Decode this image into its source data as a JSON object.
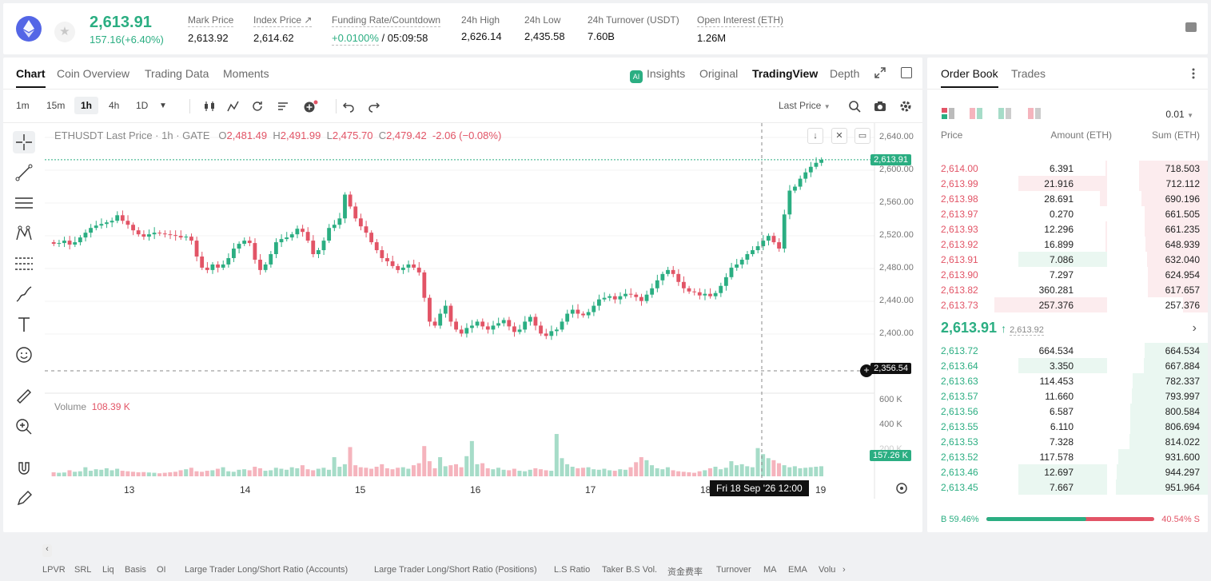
{
  "header": {
    "symbol_icon": "ethereum-icon",
    "last_price": "2,613.91",
    "change": "157.16(+6.40%)",
    "stats": [
      {
        "label": "Mark Price",
        "value": "2,613.92"
      },
      {
        "label": "Index Price ↗",
        "value": "2,614.62"
      },
      {
        "label": "Funding Rate/Countdown",
        "value_rate": "+0.0100%",
        "value_countdown": "/ 05:09:58"
      },
      {
        "label": "24h High",
        "value": "2,626.14"
      },
      {
        "label": "24h Low",
        "value": "2,435.58"
      },
      {
        "label": "24h Turnover (USDT)",
        "value": "7.60B"
      },
      {
        "label": "Open Interest (ETH)",
        "value": "1.26M"
      }
    ]
  },
  "chart_tabs": [
    "Chart",
    "Coin Overview",
    "Trading Data",
    "Moments"
  ],
  "view_tabs": {
    "insights": "Insights",
    "original": "Original",
    "tradingview": "TradingView",
    "depth": "Depth"
  },
  "timeframes": [
    "1m",
    "15m",
    "1h",
    "4h",
    "1D"
  ],
  "toolbar": {
    "price_type": "Last Price"
  },
  "chart": {
    "legend_symbol": "ETHUSDT Last Price · 1h · GATE",
    "o_label": "O",
    "o": "2,481.49",
    "h_label": "H",
    "h": "2,491.99",
    "l_label": "L",
    "l": "2,475.70",
    "c_label": "C",
    "c": "2,479.42",
    "change": "-2.06 (−0.08%)",
    "volume_label": "Volume",
    "volume_value": "108.39 K",
    "current_price_label": "2,613.91",
    "crosshair_price_label": "2,356.54",
    "volume_current_label": "157.26 K",
    "time_badge": "Fri 18 Sep '26   12:00",
    "y_ticks": [
      "2,640.00",
      "2,600.00",
      "2,560.00",
      "2,520.00",
      "2,480.00",
      "2,440.00",
      "2,400.00"
    ],
    "vol_ticks": [
      "600 K",
      "400 K",
      "200 K"
    ],
    "x_ticks": [
      "13",
      "14",
      "15",
      "16",
      "17",
      "18",
      "19"
    ],
    "bottom_indicators": [
      "LPVR",
      "SRL",
      "Liq",
      "Basis",
      "OI",
      "Large Trader Long/Short Ratio (Accounts)",
      "Large Trader Long/Short Ratio (Positions)",
      "L.S Ratio",
      "Taker B.S Vol.",
      "资金费率",
      "Turnover",
      "MA",
      "EMA",
      "Volu"
    ]
  },
  "chart_data": {
    "type": "candlestick",
    "ylim": [
      2340,
      2650
    ],
    "vol_ylim": [
      0,
      600000
    ],
    "x_ticks": [
      "13",
      "14",
      "15",
      "16",
      "17",
      "18",
      "19"
    ],
    "series": [
      {
        "name": "Price",
        "points": [
          [
            2510,
            2508
          ],
          [
            2508,
            2509
          ],
          [
            2509,
            2512
          ],
          [
            2512,
            2507
          ],
          [
            2507,
            2510
          ],
          [
            2510,
            2516
          ],
          [
            2516,
            2522
          ],
          [
            2522,
            2528
          ],
          [
            2528,
            2531
          ],
          [
            2531,
            2533
          ],
          [
            2533,
            2535
          ],
          [
            2535,
            2537
          ],
          [
            2537,
            2544
          ],
          [
            2544,
            2537
          ],
          [
            2537,
            2532
          ],
          [
            2532,
            2525
          ],
          [
            2525,
            2520
          ],
          [
            2520,
            2517
          ],
          [
            2517,
            2520
          ],
          [
            2520,
            2522
          ],
          [
            2522,
            2521
          ],
          [
            2521,
            2520
          ],
          [
            2520,
            2519
          ],
          [
            2519,
            2518
          ],
          [
            2518,
            2516
          ],
          [
            2516,
            2517
          ],
          [
            2517,
            2512
          ],
          [
            2512,
            2492
          ],
          [
            2492,
            2478
          ],
          [
            2478,
            2475
          ],
          [
            2475,
            2482
          ],
          [
            2482,
            2478
          ],
          [
            2478,
            2482
          ],
          [
            2482,
            2490
          ],
          [
            2490,
            2502
          ],
          [
            2502,
            2508
          ],
          [
            2508,
            2512
          ],
          [
            2512,
            2509
          ],
          [
            2509,
            2488
          ],
          [
            2488,
            2475
          ],
          [
            2475,
            2482
          ],
          [
            2482,
            2495
          ],
          [
            2495,
            2510
          ],
          [
            2510,
            2514
          ],
          [
            2514,
            2516
          ],
          [
            2516,
            2520
          ],
          [
            2520,
            2527
          ],
          [
            2527,
            2523
          ],
          [
            2523,
            2512
          ],
          [
            2512,
            2495
          ],
          [
            2495,
            2500
          ],
          [
            2500,
            2512
          ],
          [
            2512,
            2528
          ],
          [
            2528,
            2532
          ],
          [
            2532,
            2540
          ],
          [
            2540,
            2570
          ],
          [
            2570,
            2555
          ],
          [
            2555,
            2540
          ],
          [
            2540,
            2530
          ],
          [
            2530,
            2522
          ],
          [
            2522,
            2510
          ],
          [
            2510,
            2500
          ],
          [
            2500,
            2490
          ],
          [
            2490,
            2486
          ],
          [
            2486,
            2480
          ],
          [
            2480,
            2475
          ],
          [
            2475,
            2478
          ],
          [
            2478,
            2482
          ],
          [
            2482,
            2478
          ],
          [
            2478,
            2472
          ],
          [
            2472,
            2440
          ],
          [
            2440,
            2410
          ],
          [
            2410,
            2405
          ],
          [
            2405,
            2420
          ],
          [
            2420,
            2430
          ],
          [
            2430,
            2410
          ],
          [
            2410,
            2400
          ],
          [
            2400,
            2395
          ],
          [
            2395,
            2402
          ],
          [
            2402,
            2405
          ],
          [
            2405,
            2410
          ],
          [
            2410,
            2404
          ],
          [
            2404,
            2400
          ],
          [
            2400,
            2405
          ],
          [
            2405,
            2408
          ],
          [
            2408,
            2412
          ],
          [
            2412,
            2404
          ],
          [
            2404,
            2397
          ],
          [
            2397,
            2400
          ],
          [
            2400,
            2410
          ],
          [
            2410,
            2416
          ],
          [
            2416,
            2405
          ],
          [
            2405,
            2395
          ],
          [
            2395,
            2392
          ],
          [
            2392,
            2398
          ],
          [
            2398,
            2400
          ],
          [
            2400,
            2410
          ],
          [
            2410,
            2420
          ],
          [
            2420,
            2425
          ],
          [
            2425,
            2420
          ],
          [
            2420,
            2418
          ],
          [
            2418,
            2422
          ],
          [
            2422,
            2430
          ],
          [
            2430,
            2438
          ],
          [
            2438,
            2440
          ],
          [
            2440,
            2442
          ],
          [
            2442,
            2438
          ],
          [
            2438,
            2442
          ],
          [
            2442,
            2445
          ],
          [
            2445,
            2444
          ],
          [
            2444,
            2441
          ],
          [
            2441,
            2436
          ],
          [
            2436,
            2444
          ],
          [
            2444,
            2452
          ],
          [
            2452,
            2462
          ],
          [
            2462,
            2470
          ],
          [
            2470,
            2475
          ],
          [
            2475,
            2470
          ],
          [
            2470,
            2460
          ],
          [
            2460,
            2452
          ],
          [
            2452,
            2448
          ],
          [
            2448,
            2447
          ],
          [
            2447,
            2443
          ],
          [
            2443,
            2445
          ],
          [
            2445,
            2442
          ],
          [
            2442,
            2446
          ],
          [
            2446,
            2455
          ],
          [
            2455,
            2466
          ],
          [
            2466,
            2478
          ],
          [
            2478,
            2482
          ],
          [
            2482,
            2488
          ],
          [
            2488,
            2495
          ],
          [
            2495,
            2500
          ],
          [
            2500,
            2505
          ],
          [
            2505,
            2512
          ],
          [
            2512,
            2518
          ],
          [
            2518,
            2510
          ],
          [
            2510,
            2502
          ],
          [
            2502,
            2545
          ],
          [
            2545,
            2575
          ],
          [
            2575,
            2580
          ],
          [
            2580,
            2590
          ],
          [
            2590,
            2598
          ],
          [
            2598,
            2605
          ],
          [
            2605,
            2610
          ],
          [
            2610,
            2613.91
          ]
        ]
      },
      {
        "name": "Volume",
        "values": [
          40,
          35,
          38,
          60,
          45,
          50,
          90,
          55,
          70,
          65,
          80,
          60,
          75,
          55,
          50,
          45,
          40,
          42,
          38,
          35,
          30,
          35,
          40,
          45,
          60,
          70,
          85,
          50,
          45,
          55,
          60,
          75,
          90,
          50,
          45,
          65,
          70,
          60,
          95,
          80,
          55,
          60,
          85,
          75,
          65,
          90,
          80,
          110,
          70,
          60,
          75,
          85,
          65,
          190,
          95,
          120,
          290,
          110,
          90,
          85,
          75,
          95,
          120,
          80,
          70,
          85,
          90,
          75,
          110,
          130,
          300,
          150,
          80,
          190,
          100,
          110,
          120,
          90,
          200,
          350,
          120,
          130,
          80,
          70,
          85,
          65,
          60,
          75,
          55,
          50,
          65,
          80,
          70,
          60,
          55,
          420,
          180,
          120,
          95,
          80,
          85,
          90,
          70,
          65,
          75,
          60,
          55,
          70,
          65,
          90,
          140,
          190,
          160,
          110,
          80,
          70,
          90,
          60,
          50,
          45,
          40,
          35,
          50,
          60,
          80,
          95,
          70,
          85,
          150,
          110,
          120,
          100,
          90,
          280,
          220,
          180,
          160,
          130,
          110,
          90,
          100,
          80,
          85,
          90,
          95,
          100
        ]
      }
    ]
  },
  "orderbook": {
    "tabs": [
      "Order Book",
      "Trades"
    ],
    "precision": "0.01",
    "headers": {
      "price": "Price",
      "amount": "Amount (ETH)",
      "sum": "Sum (ETH)"
    },
    "asks": [
      {
        "price": "2,614.00",
        "amount": "6.391",
        "sum": "718.503",
        "amt_frac": 0.02,
        "sum_frac": 0.75
      },
      {
        "price": "2,613.99",
        "amount": "21.916",
        "sum": "712.112",
        "amt_frac": 0.34,
        "sum_frac": 0.75
      },
      {
        "price": "2,613.98",
        "amount": "28.691",
        "sum": "690.196",
        "amt_frac": 0.04,
        "sum_frac": 0.72
      },
      {
        "price": "2,613.97",
        "amount": "0.270",
        "sum": "661.505",
        "amt_frac": 0.0,
        "sum_frac": 0.69
      },
      {
        "price": "2,613.93",
        "amount": "12.296",
        "sum": "661.235",
        "amt_frac": 0.02,
        "sum_frac": 0.69
      },
      {
        "price": "2,613.92",
        "amount": "16.899",
        "sum": "648.939",
        "amt_frac": 0.02,
        "sum_frac": 0.68
      },
      {
        "price": "2,613.91",
        "amount": "7.086",
        "sum": "632.040",
        "amt_frac": 0.34,
        "sum_frac": 0.66,
        "highlight": "green"
      },
      {
        "price": "2,613.90",
        "amount": "7.297",
        "sum": "624.954",
        "amt_frac": 0.01,
        "sum_frac": 0.65
      },
      {
        "price": "2,613.82",
        "amount": "360.281",
        "sum": "617.657",
        "amt_frac": 0.0,
        "sum_frac": 0.65
      },
      {
        "price": "2,613.73",
        "amount": "257.376",
        "sum": "257.376",
        "amt_frac": 0.43,
        "sum_frac": 0.27
      }
    ],
    "mid_price": "2,613.91",
    "mid_arrow": "↑",
    "mid_mark": "2,613.92",
    "bids": [
      {
        "price": "2,613.72",
        "amount": "664.534",
        "sum": "664.534",
        "amt_frac": 0.0,
        "sum_frac": 0.69
      },
      {
        "price": "2,613.64",
        "amount": "3.350",
        "sum": "667.884",
        "amt_frac": 0.34,
        "sum_frac": 0.7
      },
      {
        "price": "2,613.63",
        "amount": "114.453",
        "sum": "782.337",
        "amt_frac": 0.0,
        "sum_frac": 0.82
      },
      {
        "price": "2,613.57",
        "amount": "11.660",
        "sum": "793.997",
        "amt_frac": 0.0,
        "sum_frac": 0.83
      },
      {
        "price": "2,613.56",
        "amount": "6.587",
        "sum": "800.584",
        "amt_frac": 0.0,
        "sum_frac": 0.84
      },
      {
        "price": "2,613.55",
        "amount": "6.110",
        "sum": "806.694",
        "amt_frac": 0.0,
        "sum_frac": 0.84
      },
      {
        "price": "2,613.53",
        "amount": "7.328",
        "sum": "814.022",
        "amt_frac": 0.0,
        "sum_frac": 0.85
      },
      {
        "price": "2,613.52",
        "amount": "117.578",
        "sum": "931.600",
        "amt_frac": 0.0,
        "sum_frac": 0.97
      },
      {
        "price": "2,613.46",
        "amount": "12.697",
        "sum": "944.297",
        "amt_frac": 0.34,
        "sum_frac": 0.99
      },
      {
        "price": "2,613.45",
        "amount": "7.667",
        "sum": "951.964",
        "amt_frac": 0.34,
        "sum_frac": 1.0
      }
    ],
    "buy_ratio": "B 59.46%",
    "sell_ratio": "40.54% S",
    "buy_frac": 0.5946
  },
  "colors": {
    "up": "#2bae82",
    "down": "#e25466",
    "up_light": "#eaf7f1",
    "down_light": "#fcecee"
  }
}
